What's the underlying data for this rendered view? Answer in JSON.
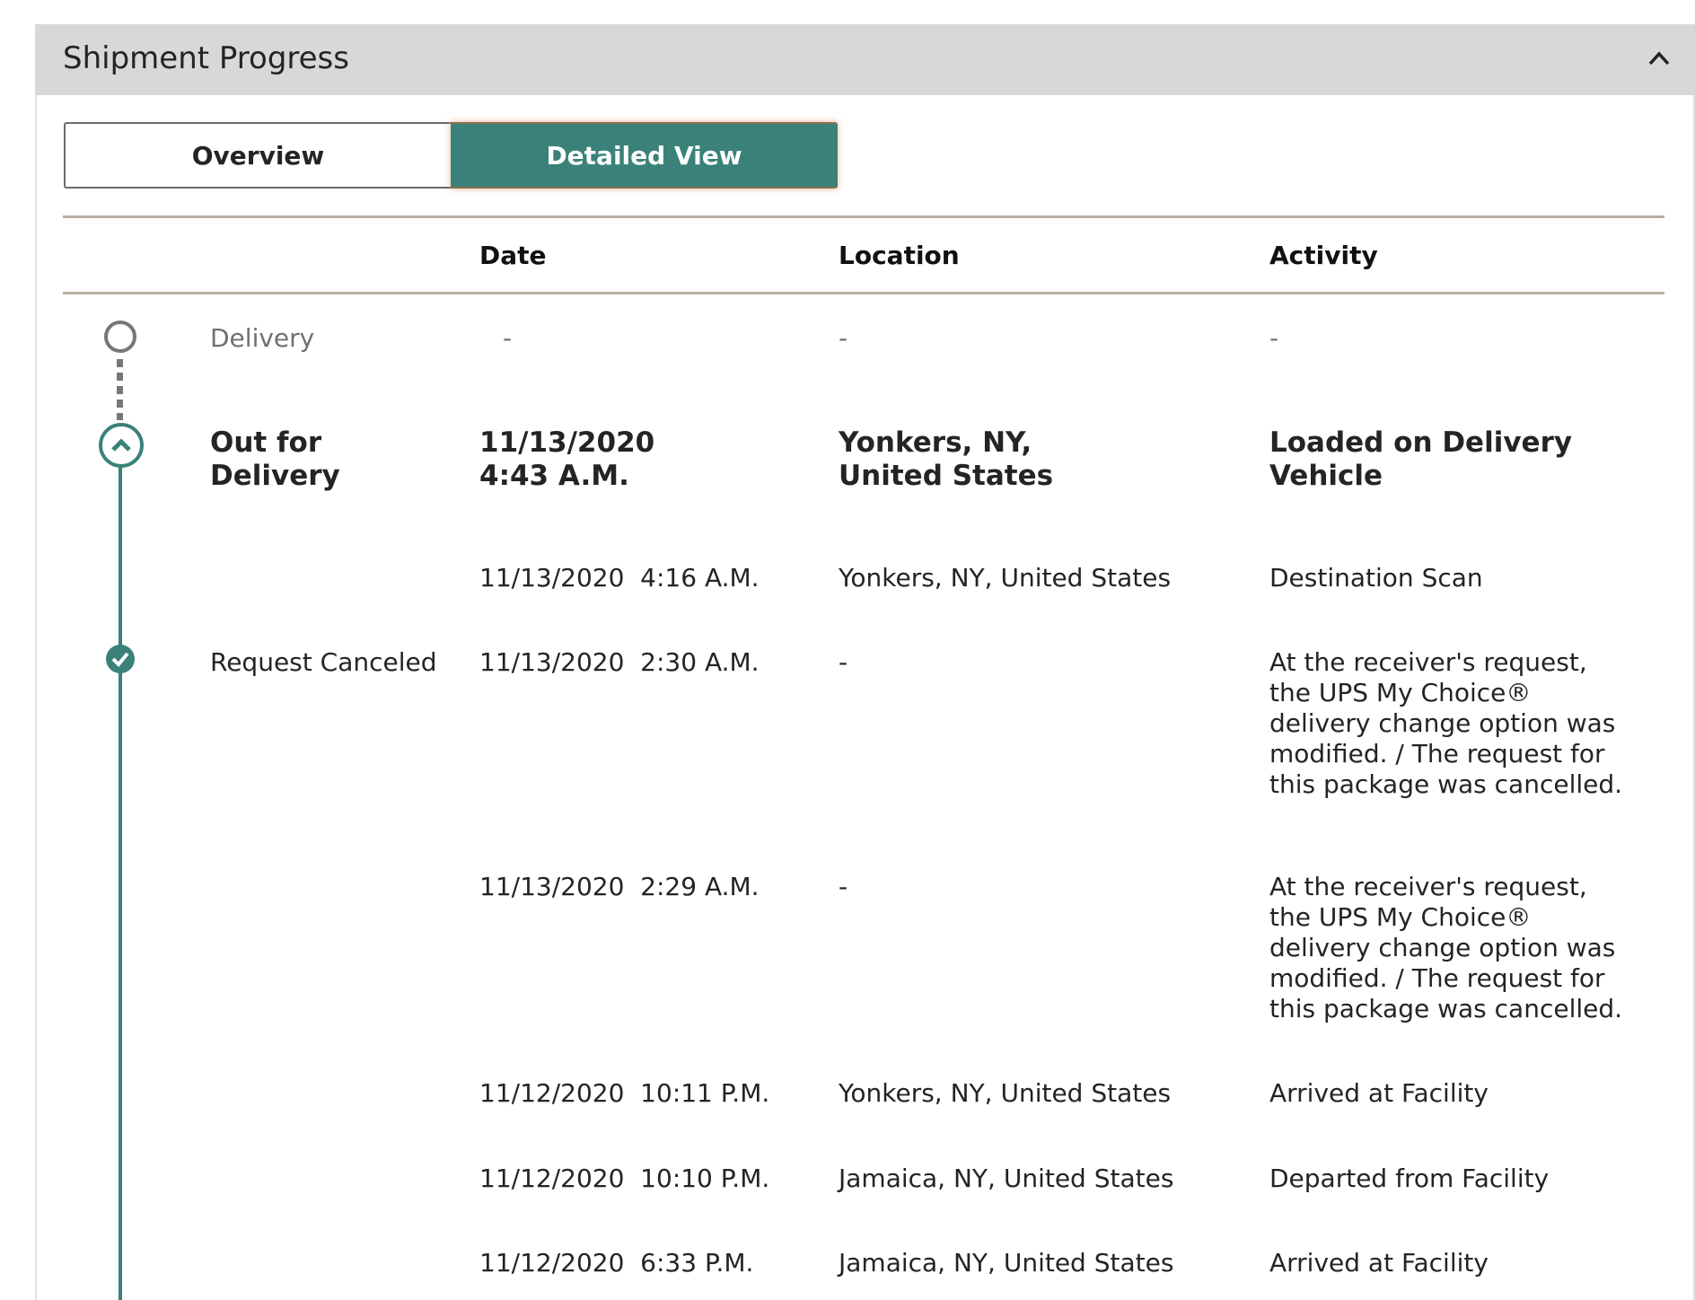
{
  "header": {
    "title": "Shipment Progress",
    "collapse_icon": "chevron-up-icon"
  },
  "tabs": [
    {
      "label": "Overview",
      "active": false
    },
    {
      "label": "Detailed View",
      "active": true
    }
  ],
  "accent_color": "#3a8279",
  "columns": {
    "date": "Date",
    "location": "Location",
    "activity": "Activity"
  },
  "rows": [
    {
      "status": "Delivery",
      "date": "-",
      "location": "-",
      "activity": "-",
      "icon": "empty-circle-icon"
    },
    {
      "status": "Out for Delivery",
      "date": "11/13/2020\n4:43 A.M.",
      "location": "Yonkers, NY, United States",
      "activity": "Loaded on Delivery Vehicle",
      "icon": "chevron-up-circle-icon"
    },
    {
      "status": "",
      "date": "11/13/2020  4:16 A.M.",
      "location": "Yonkers, NY, United States",
      "activity": "Destination Scan"
    },
    {
      "status": "Request Canceled",
      "date": "11/13/2020  2:30 A.M.",
      "location": "-",
      "activity": "At the receiver's request, the UPS My Choice® delivery change option was modified. / The request for this package was cancelled.",
      "icon": "check-circle-icon"
    },
    {
      "status": "",
      "date": "11/13/2020  2:29 A.M.",
      "location": "-",
      "activity": "At the receiver's request, the UPS My Choice® delivery change option was modified. / The request for this package was cancelled."
    },
    {
      "status": "",
      "date": "11/12/2020  10:11 P.M.",
      "location": "Yonkers, NY, United States",
      "activity": "Arrived at Facility"
    },
    {
      "status": "",
      "date": "11/12/2020  10:10 P.M.",
      "location": "Jamaica, NY, United States",
      "activity": "Departed from Facility"
    },
    {
      "status": "",
      "date": "11/12/2020  6:33 P.M.",
      "location": "Jamaica, NY, United States",
      "activity": "Arrived at Facility"
    }
  ]
}
